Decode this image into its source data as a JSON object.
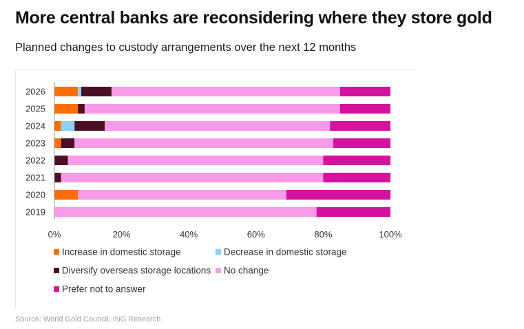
{
  "title": "More central banks are reconsidering where they store gold",
  "subtitle": "Planned changes to custody arrangements over the next 12 months",
  "source": "Source: World Gold Council, ING Research",
  "chart_data": {
    "type": "bar",
    "orientation": "horizontal",
    "stacked": true,
    "categories": [
      "2026",
      "2025",
      "2024",
      "2023",
      "2022",
      "2021",
      "2020",
      "2019"
    ],
    "xlim": [
      0,
      100
    ],
    "x_ticks": [
      "0%",
      "20%",
      "40%",
      "60%",
      "80%",
      "100%"
    ],
    "grid": false,
    "legend_position": "bottom",
    "series": [
      {
        "name": "Increase in domestic storage",
        "color": "#ff6d00",
        "values": [
          7,
          7,
          2,
          2,
          0,
          0,
          7,
          0
        ]
      },
      {
        "name": "Decrease in domestic storage",
        "color": "#89d1f5",
        "values": [
          1,
          0,
          4,
          0,
          0,
          0,
          0,
          0
        ]
      },
      {
        "name": "Diversify overseas storage locations",
        "color": "#4a0f23",
        "values": [
          9,
          2,
          9,
          4,
          4,
          2,
          0,
          0
        ]
      },
      {
        "name": "No change",
        "color": "#f79ae9",
        "values": [
          68,
          76,
          67,
          77,
          76,
          78,
          62,
          78
        ]
      },
      {
        "name": "Prefer not to answer",
        "color": "#d4129e",
        "values": [
          15,
          15,
          18,
          17,
          20,
          20,
          31,
          22
        ]
      }
    ]
  }
}
